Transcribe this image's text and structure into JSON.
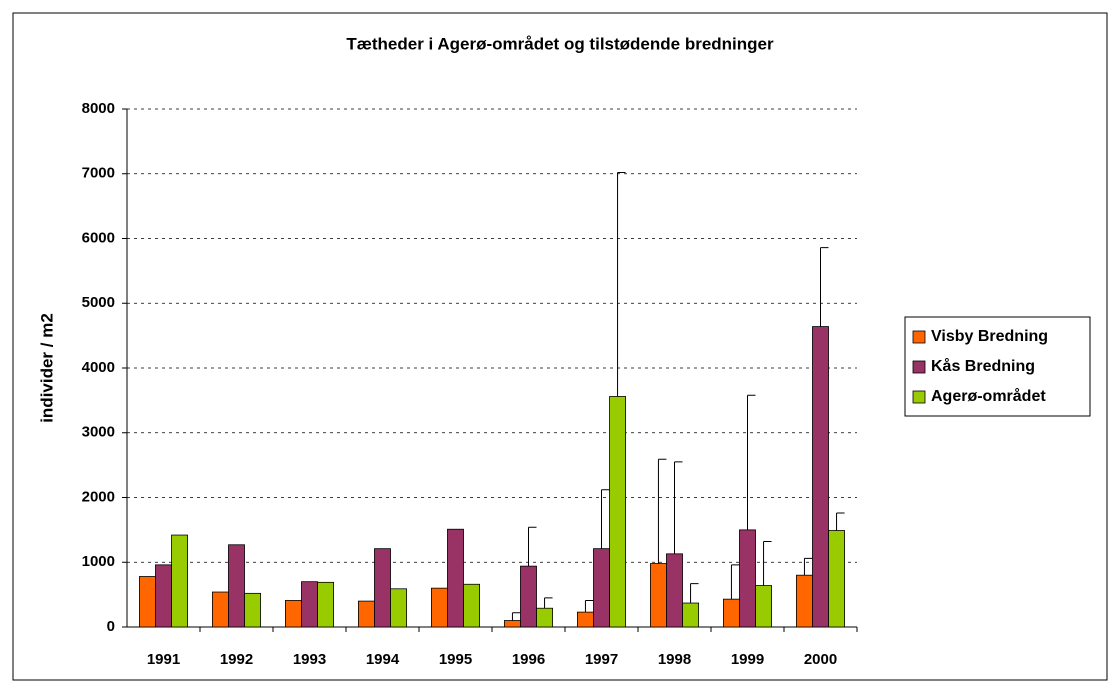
{
  "chart_data": {
    "type": "bar",
    "title": "Tætheder i Agerø-området og tilstødende bredninger",
    "ylabel": "individer / m2",
    "categories": [
      "1991",
      "1992",
      "1993",
      "1994",
      "1995",
      "1996",
      "1997",
      "1998",
      "1999",
      "2000"
    ],
    "series": [
      {
        "name": "Visby Bredning",
        "color": "#ff6600",
        "values": [
          780,
          540,
          410,
          400,
          600,
          100,
          230,
          980,
          430,
          800
        ],
        "errors": [
          null,
          null,
          null,
          null,
          null,
          120,
          180,
          1610,
          530,
          260
        ]
      },
      {
        "name": "Kås Bredning",
        "color": "#993366",
        "values": [
          960,
          1270,
          700,
          1210,
          1510,
          940,
          1210,
          1130,
          1500,
          4640
        ],
        "errors": [
          null,
          null,
          null,
          null,
          null,
          600,
          910,
          1420,
          2080,
          1220
        ]
      },
      {
        "name": "Agerø-området",
        "color": "#99cc00",
        "values": [
          1420,
          520,
          690,
          590,
          660,
          290,
          3560,
          370,
          640,
          1490
        ],
        "errors": [
          null,
          null,
          null,
          null,
          null,
          160,
          3460,
          300,
          680,
          270
        ]
      }
    ],
    "ylim": [
      0,
      8000
    ],
    "yticks": [
      0,
      1000,
      2000,
      3000,
      4000,
      5000,
      6000,
      7000,
      8000
    ],
    "grid": true,
    "legend": "right"
  }
}
